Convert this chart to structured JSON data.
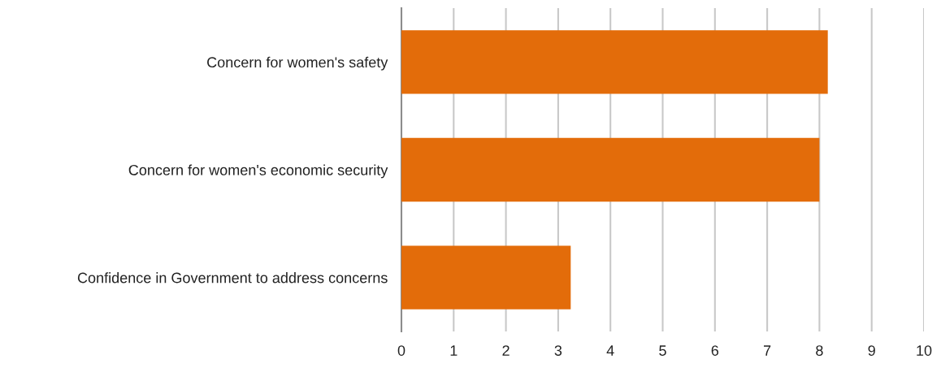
{
  "chart_data": {
    "type": "bar",
    "orientation": "horizontal",
    "categories": [
      "Concern for women's safety",
      "Concern for women's economic security",
      "Confidence in Government to address concerns"
    ],
    "values": [
      8.16,
      8.0,
      3.24
    ],
    "color": "#e36c0a",
    "xlim": [
      0,
      10
    ],
    "xticks": [
      0,
      1,
      2,
      3,
      4,
      5,
      6,
      7,
      8,
      9,
      10
    ],
    "grid": "x"
  }
}
